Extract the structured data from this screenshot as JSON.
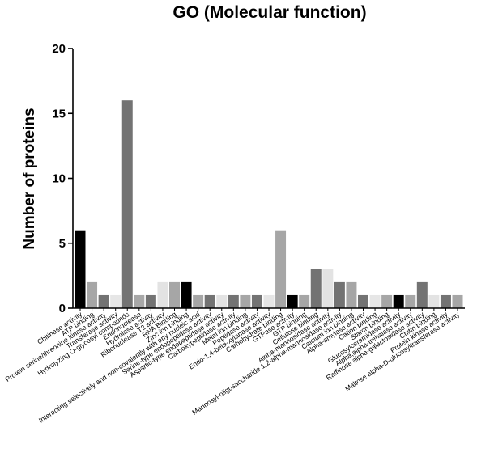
{
  "chart_data": {
    "type": "bar",
    "title": "GO (Molecular function)",
    "xlabel": "",
    "ylabel": "Number of proteins",
    "ylim": [
      0,
      20
    ],
    "yticks": [
      0,
      5,
      10,
      15,
      20
    ],
    "grid": false,
    "legend": "none",
    "categories": [
      "Chitinase activity",
      "ATP binding",
      "Protein serine/threonine kinase activity",
      "Transferase activity",
      "Hydrolyzing O-glycosyl compounds",
      "Endonuclease",
      "Hydrolase activity",
      "Ribonuclease T2 activity",
      "RNA Binding",
      "Zinc ion binding",
      "Interacting selectively and non-covalently with any nucleic acid",
      "Serine-type endopeptidase activity",
      "Aspartic-type endopeptidase activity",
      "Carboxypeptidase activity",
      "Metal ion binding",
      "Peptidase activity",
      "Endo-1,4-beta-xylanase activity",
      "Carbohydrate binding",
      "GTPase activity",
      "GTP binding",
      "Cellulose binding",
      "Alpha-mannosidase activity",
      "Mannosyl-oligosaccharide 1,2-alpha-mannosidase activity",
      "Calcium ion binding",
      "Alpha-amylase activity",
      "Cation binding",
      "Starch binding",
      "Glucosylceramidase activity",
      "Alpha,alpha-trehalase activity",
      "Raffinose alpha-galactosidase activity",
      "Chitin binding",
      "Protein kinase activity",
      "Maltose alpha-D-glucosyltransferase activity"
    ],
    "values": [
      6,
      2,
      1,
      1,
      16,
      1,
      1,
      2,
      2,
      2,
      1,
      1,
      1,
      1,
      1,
      1,
      1,
      6,
      1,
      1,
      3,
      3,
      2,
      2,
      1,
      1,
      1,
      1,
      1,
      2,
      1,
      1,
      1
    ],
    "bar_colors": [
      "#000000",
      "#a6a6a6",
      "#727272",
      "#e6e6e6",
      "#737373",
      "#a8a8a8",
      "#737373",
      "#e3e3e3",
      "#a6a6a6",
      "#000000",
      "#a6a6a6",
      "#737373",
      "#e3e3e3",
      "#737373",
      "#a6a6a6",
      "#737373",
      "#e6e6e6",
      "#a6a6a6",
      "#000000",
      "#a6a6a6",
      "#737373",
      "#e3e3e3",
      "#737373",
      "#a6a6a6",
      "#737373",
      "#e6e6e6",
      "#a6a6a6",
      "#000000",
      "#a6a6a6",
      "#737373",
      "#e3e3e3",
      "#737373",
      "#a6a6a6"
    ]
  }
}
